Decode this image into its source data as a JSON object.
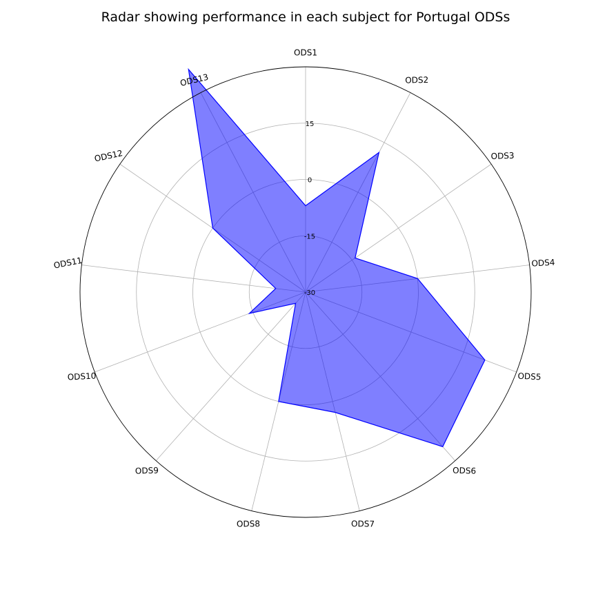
{
  "chart_data": {
    "type": "radar",
    "title": "Radar showing performance in each subject for Portugal ODSs",
    "categories": [
      "ODS1",
      "ODS2",
      "ODS3",
      "ODS4",
      "ODS5",
      "ODS6",
      "ODS7",
      "ODS8",
      "ODS9",
      "ODS10",
      "ODS11",
      "ODS12",
      "ODS13"
    ],
    "series": [
      {
        "values": [
          -7,
          12,
          -14,
          0,
          21,
          25,
          3,
          0,
          -26,
          -14,
          -22,
          0,
          37
        ]
      }
    ],
    "rlim": [
      -30,
      30
    ],
    "rticks": [
      -30,
      -15,
      0,
      15
    ],
    "rtick_labels": [
      "-30",
      "-15",
      "0",
      "15"
    ],
    "grid": true,
    "colors": {
      "fill": "#0000ff",
      "fill_opacity": 0.5,
      "line": "#0000ff",
      "grid": "#b0b0b0",
      "outer": "#000000"
    }
  }
}
